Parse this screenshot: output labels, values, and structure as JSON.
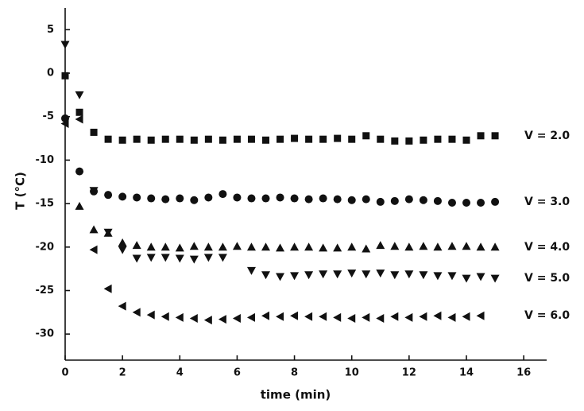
{
  "chart_data": {
    "type": "scatter",
    "x_label": "time (min)",
    "y_label": "T (°C)",
    "xlim": [
      0,
      16.8
    ],
    "ylim": [
      -33,
      7.5
    ],
    "xticks": [
      0,
      2,
      4,
      6,
      8,
      10,
      12,
      14,
      16
    ],
    "yticks": [
      -30,
      -25,
      -20,
      -15,
      -10,
      -5,
      0,
      5
    ],
    "x": [
      0,
      0.5,
      1,
      1.5,
      2,
      2.5,
      3,
      3.5,
      4,
      4.5,
      5,
      5.5,
      6,
      6.5,
      7,
      7.5,
      8,
      8.5,
      9,
      9.5,
      10,
      10.5,
      11,
      11.5,
      12,
      12.5,
      13,
      13.5,
      14,
      14.5,
      15
    ],
    "series": [
      {
        "name": "V = 2.0",
        "marker": "square",
        "color": "#111111",
        "values": [
          -0.3,
          -4.5,
          -6.8,
          -7.6,
          -7.7,
          -7.6,
          -7.7,
          -7.6,
          -7.6,
          -7.7,
          -7.6,
          -7.7,
          -7.6,
          -7.6,
          -7.7,
          -7.6,
          -7.5,
          -7.6,
          -7.6,
          -7.5,
          -7.6,
          -7.2,
          -7.6,
          -7.8,
          -7.8,
          -7.7,
          -7.6,
          -7.6,
          -7.7,
          -7.2,
          -7.2
        ]
      },
      {
        "name": "V = 3.0",
        "marker": "circle",
        "color": "#111111",
        "values": [
          -5.2,
          -11.3,
          -13.6,
          -14.0,
          -14.2,
          -14.3,
          -14.4,
          -14.5,
          -14.4,
          -14.6,
          -14.3,
          -13.9,
          -14.3,
          -14.4,
          -14.4,
          -14.3,
          -14.4,
          -14.5,
          -14.4,
          -14.5,
          -14.6,
          -14.5,
          -14.8,
          -14.7,
          -14.5,
          -14.6,
          -14.7,
          -14.9,
          -14.9,
          -14.9,
          -14.8
        ]
      },
      {
        "name": "V = 4.0",
        "marker": "triangle-up",
        "color": "#111111",
        "values": [
          null,
          -15.3,
          -18.0,
          -18.4,
          -19.5,
          -19.8,
          -20.0,
          -20.0,
          -20.1,
          -19.9,
          -20.0,
          -20.0,
          -19.9,
          -20.0,
          -20.0,
          -20.1,
          -20.0,
          -20.0,
          -20.1,
          -20.1,
          -20.0,
          -20.2,
          -19.8,
          -19.9,
          -20.0,
          -19.9,
          -20.0,
          -19.9,
          -19.9,
          -20.0,
          -20.0
        ]
      },
      {
        "name": "V = 5.0",
        "marker": "triangle-down",
        "color": "#111111",
        "values": [
          3.3,
          -2.5,
          -13.5,
          -18.3,
          -20.3,
          -21.3,
          -21.2,
          -21.2,
          -21.3,
          -21.4,
          -21.2,
          -21.2,
          null,
          -22.7,
          -23.2,
          -23.4,
          -23.3,
          -23.2,
          -23.1,
          -23.1,
          -23.0,
          -23.1,
          -23.0,
          -23.2,
          -23.1,
          -23.2,
          -23.3,
          -23.3,
          -23.6,
          -23.4,
          -23.6
        ]
      },
      {
        "name": "V = 6.0",
        "marker": "triangle-left",
        "color": "#111111",
        "values": [
          -5.8,
          -5.3,
          -20.3,
          -24.8,
          -26.8,
          -27.5,
          -27.8,
          -28.0,
          -28.1,
          -28.2,
          -28.4,
          -28.3,
          -28.2,
          -28.1,
          -27.9,
          -28.0,
          -27.9,
          -28.0,
          -28.0,
          -28.1,
          -28.2,
          -28.1,
          -28.2,
          -28.0,
          -28.1,
          -28.0,
          -27.9,
          -28.1,
          -28.0,
          -27.9,
          null
        ]
      }
    ]
  }
}
